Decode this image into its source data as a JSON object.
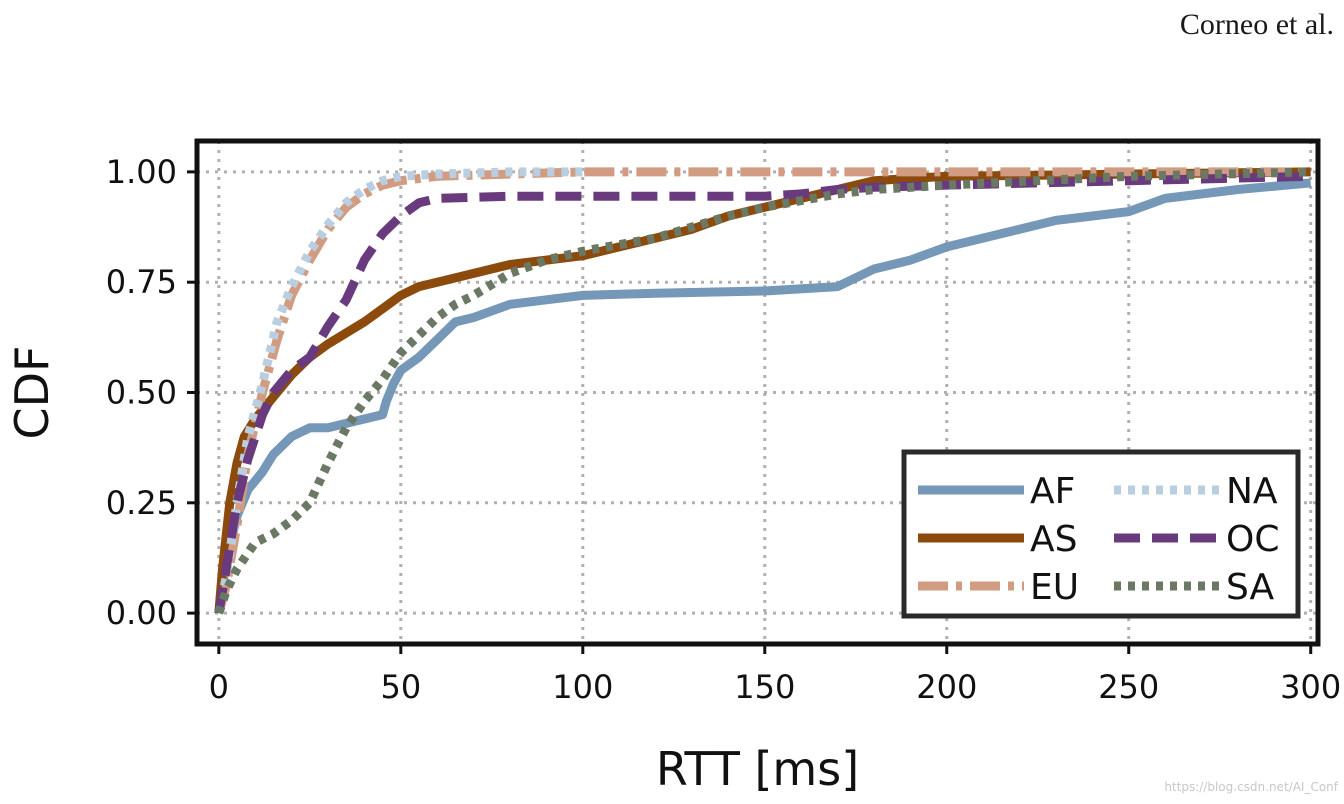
{
  "page": {
    "header_text": "Corneo et al.",
    "watermark_text": "https://blog.csdn.net/AI_Conf"
  },
  "chart_data": {
    "type": "line",
    "xlabel": "RTT [ms]",
    "ylabel": "CDF",
    "xlim": [
      -6,
      302
    ],
    "ylim": [
      -0.07,
      1.07
    ],
    "x_ticks": [
      0,
      50,
      100,
      150,
      200,
      250,
      300
    ],
    "y_ticks": [
      0.0,
      0.25,
      0.5,
      0.75,
      1.0
    ],
    "x_tick_labels": [
      "0",
      "50",
      "100",
      "150",
      "200",
      "250",
      "300"
    ],
    "y_tick_labels": [
      "0.00",
      "0.25",
      "0.50",
      "0.75",
      "1.00"
    ],
    "grid": true,
    "legend_position": "lower-right",
    "legend_columns": 2,
    "series": [
      {
        "name": "AF",
        "color": "#7598b8",
        "style": "solid",
        "x": [
          0,
          2,
          5,
          8,
          12,
          15,
          20,
          25,
          30,
          35,
          40,
          45,
          46,
          48,
          50,
          55,
          60,
          65,
          70,
          80,
          90,
          100,
          120,
          150,
          170,
          175,
          180,
          190,
          200,
          220,
          230,
          250,
          260,
          280,
          300
        ],
        "y": [
          0.0,
          0.12,
          0.22,
          0.28,
          0.32,
          0.36,
          0.4,
          0.42,
          0.42,
          0.43,
          0.44,
          0.45,
          0.48,
          0.52,
          0.55,
          0.58,
          0.62,
          0.66,
          0.67,
          0.7,
          0.71,
          0.72,
          0.725,
          0.73,
          0.74,
          0.76,
          0.78,
          0.8,
          0.83,
          0.87,
          0.89,
          0.91,
          0.94,
          0.96,
          0.975
        ]
      },
      {
        "name": "AS",
        "color": "#8c4a0c",
        "style": "solid",
        "x": [
          0,
          1,
          3,
          5,
          7,
          10,
          15,
          20,
          25,
          30,
          40,
          45,
          50,
          55,
          60,
          70,
          80,
          90,
          100,
          110,
          120,
          130,
          140,
          150,
          160,
          170,
          180,
          200,
          250,
          300
        ],
        "y": [
          0.0,
          0.1,
          0.25,
          0.34,
          0.4,
          0.44,
          0.49,
          0.54,
          0.58,
          0.61,
          0.66,
          0.69,
          0.72,
          0.74,
          0.75,
          0.77,
          0.79,
          0.8,
          0.81,
          0.83,
          0.85,
          0.87,
          0.9,
          0.92,
          0.94,
          0.96,
          0.98,
          0.99,
          0.995,
          1.0
        ]
      },
      {
        "name": "EU",
        "color": "#d19c82",
        "style": "dashdot",
        "x": [
          0,
          2,
          5,
          8,
          12,
          16,
          20,
          25,
          30,
          35,
          40,
          45,
          50,
          60,
          80,
          100,
          150,
          200,
          300
        ],
        "y": [
          0.0,
          0.06,
          0.2,
          0.36,
          0.5,
          0.62,
          0.72,
          0.8,
          0.87,
          0.92,
          0.95,
          0.97,
          0.98,
          0.99,
          0.995,
          1.0,
          1.0,
          1.0,
          1.0
        ]
      },
      {
        "name": "NA",
        "color": "#b9cfe1",
        "style": "dotted",
        "x": [
          0,
          2,
          5,
          8,
          12,
          16,
          20,
          25,
          30,
          35,
          40,
          45,
          50,
          60,
          80,
          100
        ],
        "y": [
          0.0,
          0.08,
          0.25,
          0.4,
          0.52,
          0.66,
          0.74,
          0.82,
          0.88,
          0.93,
          0.96,
          0.98,
          0.99,
          0.995,
          1.0,
          1.0
        ]
      },
      {
        "name": "OC",
        "color": "#6a3a7e",
        "style": "dashed",
        "x": [
          0,
          2,
          5,
          8,
          12,
          15,
          20,
          25,
          30,
          35,
          40,
          45,
          50,
          55,
          60,
          80,
          100,
          150,
          160,
          170,
          180,
          200,
          250,
          300
        ],
        "y": [
          0.0,
          0.1,
          0.25,
          0.35,
          0.45,
          0.5,
          0.55,
          0.58,
          0.65,
          0.71,
          0.8,
          0.86,
          0.9,
          0.93,
          0.94,
          0.945,
          0.945,
          0.945,
          0.95,
          0.96,
          0.965,
          0.97,
          0.98,
          0.99
        ]
      },
      {
        "name": "SA",
        "color": "#6a7864",
        "style": "dotted",
        "x": [
          0,
          2,
          5,
          10,
          15,
          20,
          25,
          30,
          35,
          40,
          45,
          50,
          55,
          60,
          65,
          70,
          80,
          90,
          100,
          120,
          140,
          150,
          170,
          180,
          200,
          250,
          300
        ],
        "y": [
          0.0,
          0.05,
          0.1,
          0.16,
          0.18,
          0.21,
          0.25,
          0.34,
          0.42,
          0.48,
          0.53,
          0.59,
          0.63,
          0.67,
          0.7,
          0.72,
          0.77,
          0.8,
          0.82,
          0.85,
          0.9,
          0.92,
          0.95,
          0.96,
          0.97,
          0.99,
          1.0
        ]
      }
    ]
  }
}
